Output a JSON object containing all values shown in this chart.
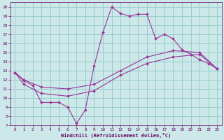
{
  "xlabel": "Windchill (Refroidissement éolien,°C)",
  "bg_color": "#cce8e8",
  "grid_color": "#99cccc",
  "line_color": "#993399",
  "xlim": [
    -0.5,
    23.5
  ],
  "ylim": [
    7,
    20.5
  ],
  "yticks": [
    7,
    8,
    9,
    10,
    11,
    12,
    13,
    14,
    15,
    16,
    17,
    18,
    19,
    20
  ],
  "xticks": [
    0,
    1,
    2,
    3,
    4,
    5,
    6,
    7,
    8,
    9,
    10,
    11,
    12,
    13,
    14,
    15,
    16,
    17,
    18,
    19,
    20,
    21,
    22,
    23
  ],
  "series1_x": [
    0,
    1,
    2,
    3,
    4,
    5,
    6,
    7,
    8,
    9,
    10,
    11,
    12,
    13,
    14,
    15,
    16,
    17,
    18,
    19,
    20,
    21,
    22,
    23
  ],
  "series1_y": [
    12.8,
    11.9,
    11.4,
    9.5,
    9.5,
    9.5,
    9.0,
    7.2,
    8.7,
    13.5,
    17.2,
    20.0,
    19.3,
    19.0,
    19.2,
    19.2,
    16.5,
    17.0,
    16.5,
    15.3,
    14.8,
    14.2,
    13.8,
    13.2
  ],
  "series2_x": [
    0,
    1,
    3,
    6,
    9,
    12,
    15,
    18,
    21,
    23
  ],
  "series2_y": [
    12.8,
    11.5,
    10.5,
    10.2,
    10.8,
    12.5,
    13.8,
    14.5,
    14.8,
    13.2
  ],
  "series3_x": [
    0,
    1,
    3,
    6,
    9,
    12,
    15,
    18,
    21,
    23
  ],
  "series3_y": [
    12.8,
    12.0,
    11.2,
    11.0,
    11.5,
    13.0,
    14.5,
    15.2,
    15.0,
    13.2
  ]
}
